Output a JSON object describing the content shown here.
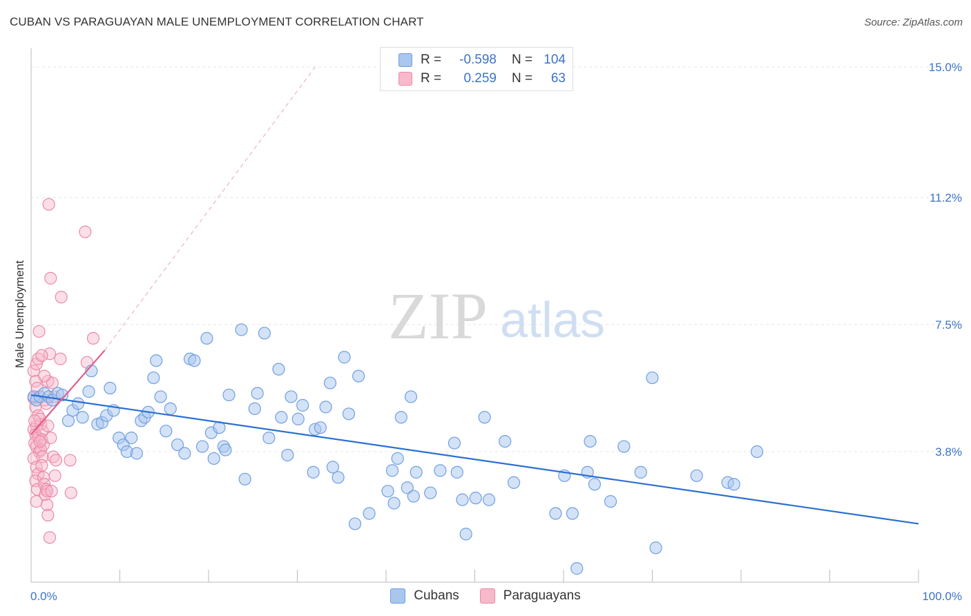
{
  "title": "CUBAN VS PARAGUAYAN MALE UNEMPLOYMENT CORRELATION CHART",
  "source": "Source: ZipAtlas.com",
  "watermark": {
    "zip": "ZIP",
    "atlas": "atlas"
  },
  "legend": {
    "rows": [
      {
        "r_label": "R =",
        "r_value": "-0.598",
        "n_label": "N =",
        "n_value": "104"
      },
      {
        "r_label": "R =",
        "r_value": "0.259",
        "n_label": "N =",
        "n_value": "63"
      }
    ]
  },
  "colors": {
    "cubans_fill": "#a9c6ef",
    "cubans_stroke": "#6e9fdf",
    "cubans_line": "#2a6fd1",
    "paraguayans_fill": "#f7b9cb",
    "paraguayans_stroke": "#ec89a7",
    "paraguayans_line": "#e0608b",
    "tick_text": "#3b73c9"
  },
  "chart_data": {
    "type": "scatter",
    "title": "CUBAN VS PARAGUAYAN MALE UNEMPLOYMENT CORRELATION CHART",
    "xlabel": "",
    "ylabel": "Male Unemployment",
    "xlim": [
      0,
      100
    ],
    "ylim": [
      0,
      15.5
    ],
    "x_tick_labels": [
      "0.0%",
      "100.0%"
    ],
    "y_ticks": [
      3.8,
      7.5,
      11.2,
      15.0
    ],
    "y_tick_labels": [
      "3.8%",
      "7.5%",
      "11.2%",
      "15.0%"
    ],
    "grid": true,
    "legend_position": "top-center",
    "series": [
      {
        "name": "Cubans",
        "trend": {
          "x": [
            0,
            100
          ],
          "y": [
            5.45,
            1.7
          ]
        },
        "points": [
          [
            0.3,
            5.4
          ],
          [
            0.6,
            5.3
          ],
          [
            1.0,
            5.4
          ],
          [
            1.5,
            5.5
          ],
          [
            2.0,
            5.4
          ],
          [
            2.4,
            5.3
          ],
          [
            3.0,
            5.5
          ],
          [
            3.5,
            5.45
          ],
          [
            4.2,
            4.7
          ],
          [
            4.7,
            5.0
          ],
          [
            5.3,
            5.2
          ],
          [
            5.8,
            4.8
          ],
          [
            6.5,
            5.55
          ],
          [
            6.8,
            6.15
          ],
          [
            7.5,
            4.6
          ],
          [
            8.0,
            4.65
          ],
          [
            8.5,
            4.85
          ],
          [
            8.9,
            5.65
          ],
          [
            9.3,
            5.0
          ],
          [
            9.9,
            4.2
          ],
          [
            10.4,
            4.0
          ],
          [
            10.8,
            3.8
          ],
          [
            11.3,
            4.2
          ],
          [
            11.9,
            3.75
          ],
          [
            12.4,
            4.7
          ],
          [
            12.8,
            4.8
          ],
          [
            13.2,
            4.95
          ],
          [
            13.8,
            5.95
          ],
          [
            14.1,
            6.45
          ],
          [
            14.6,
            5.4
          ],
          [
            15.2,
            4.4
          ],
          [
            15.7,
            5.05
          ],
          [
            16.5,
            4.0
          ],
          [
            17.3,
            3.75
          ],
          [
            17.9,
            6.5
          ],
          [
            18.4,
            6.45
          ],
          [
            19.3,
            3.95
          ],
          [
            19.8,
            7.1
          ],
          [
            20.3,
            4.35
          ],
          [
            20.6,
            3.6
          ],
          [
            21.2,
            4.5
          ],
          [
            21.7,
            3.95
          ],
          [
            21.9,
            3.85
          ],
          [
            22.3,
            5.45
          ],
          [
            23.7,
            7.35
          ],
          [
            24.1,
            3.0
          ],
          [
            25.2,
            5.05
          ],
          [
            25.5,
            5.5
          ],
          [
            26.3,
            7.25
          ],
          [
            26.8,
            4.2
          ],
          [
            27.9,
            6.2
          ],
          [
            28.2,
            4.8
          ],
          [
            28.9,
            3.7
          ],
          [
            29.3,
            5.4
          ],
          [
            30.1,
            4.75
          ],
          [
            30.6,
            5.15
          ],
          [
            31.8,
            3.2
          ],
          [
            32.0,
            4.45
          ],
          [
            32.6,
            4.5
          ],
          [
            33.2,
            5.1
          ],
          [
            33.7,
            5.8
          ],
          [
            34.0,
            3.35
          ],
          [
            34.6,
            3.05
          ],
          [
            35.3,
            6.55
          ],
          [
            35.8,
            4.9
          ],
          [
            36.5,
            1.7
          ],
          [
            36.9,
            6.0
          ],
          [
            38.1,
            2.0
          ],
          [
            40.2,
            2.65
          ],
          [
            40.7,
            3.25
          ],
          [
            40.9,
            2.3
          ],
          [
            41.3,
            3.6
          ],
          [
            41.7,
            4.8
          ],
          [
            42.4,
            2.75
          ],
          [
            42.8,
            5.4
          ],
          [
            43.1,
            2.5
          ],
          [
            43.4,
            3.2
          ],
          [
            45.0,
            2.6
          ],
          [
            46.1,
            3.25
          ],
          [
            47.7,
            4.05
          ],
          [
            48.0,
            3.2
          ],
          [
            48.6,
            2.4
          ],
          [
            49.0,
            1.4
          ],
          [
            50.1,
            2.45
          ],
          [
            51.1,
            4.8
          ],
          [
            51.6,
            2.4
          ],
          [
            53.4,
            4.1
          ],
          [
            54.4,
            2.9
          ],
          [
            59.1,
            2.0
          ],
          [
            60.1,
            3.1
          ],
          [
            61.0,
            2.0
          ],
          [
            61.5,
            0.4
          ],
          [
            62.7,
            3.2
          ],
          [
            63.0,
            4.1
          ],
          [
            63.5,
            2.85
          ],
          [
            65.3,
            2.35
          ],
          [
            66.8,
            3.95
          ],
          [
            68.7,
            3.2
          ],
          [
            70.0,
            5.95
          ],
          [
            70.4,
            1.0
          ],
          [
            75.0,
            3.1
          ],
          [
            78.5,
            2.9
          ],
          [
            79.2,
            2.85
          ],
          [
            81.8,
            3.8
          ]
        ]
      },
      {
        "name": "Paraguayans",
        "trend": {
          "x": [
            0,
            8.3
          ],
          "y": [
            4.3,
            6.75
          ],
          "ext_x": [
            8.3,
            32.0
          ],
          "ext_y": [
            6.75,
            15.0
          ]
        },
        "points": [
          [
            0.3,
            6.15
          ],
          [
            0.6,
            6.35
          ],
          [
            0.8,
            6.5
          ],
          [
            0.5,
            5.85
          ],
          [
            0.7,
            5.65
          ],
          [
            0.9,
            7.3
          ],
          [
            0.3,
            5.35
          ],
          [
            0.5,
            5.1
          ],
          [
            0.8,
            4.85
          ],
          [
            0.6,
            4.55
          ],
          [
            0.3,
            4.45
          ],
          [
            0.5,
            4.3
          ],
          [
            0.8,
            4.2
          ],
          [
            0.4,
            4.05
          ],
          [
            0.6,
            3.95
          ],
          [
            0.9,
            3.8
          ],
          [
            0.3,
            3.6
          ],
          [
            0.6,
            3.35
          ],
          [
            0.8,
            3.15
          ],
          [
            0.5,
            2.95
          ],
          [
            0.7,
            2.7
          ],
          [
            0.6,
            2.35
          ],
          [
            1.1,
            4.6
          ],
          [
            1.3,
            4.4
          ],
          [
            1.2,
            4.15
          ],
          [
            1.4,
            4.0
          ],
          [
            1.1,
            3.85
          ],
          [
            1.3,
            3.65
          ],
          [
            1.2,
            3.4
          ],
          [
            1.4,
            3.05
          ],
          [
            1.5,
            2.85
          ],
          [
            1.7,
            2.7
          ],
          [
            1.6,
            2.55
          ],
          [
            1.8,
            2.25
          ],
          [
            1.9,
            1.95
          ],
          [
            2.1,
            1.3
          ],
          [
            1.8,
            2.65
          ],
          [
            2.3,
            2.65
          ],
          [
            1.5,
            5.3
          ],
          [
            1.7,
            5.2
          ],
          [
            1.9,
            5.85
          ],
          [
            2.1,
            6.65
          ],
          [
            2.4,
            5.8
          ],
          [
            2.2,
            4.2
          ],
          [
            2.5,
            3.65
          ],
          [
            2.7,
            3.1
          ],
          [
            2.8,
            3.55
          ],
          [
            1.9,
            4.55
          ],
          [
            1.5,
            6.0
          ],
          [
            1.2,
            6.6
          ],
          [
            1.0,
            4.75
          ],
          [
            3.3,
            6.5
          ],
          [
            3.4,
            8.3
          ],
          [
            2.2,
            8.85
          ],
          [
            2.0,
            11.0
          ],
          [
            6.1,
            10.2
          ],
          [
            6.3,
            6.4
          ],
          [
            7.0,
            7.1
          ],
          [
            4.5,
            2.6
          ],
          [
            4.4,
            3.55
          ],
          [
            1.0,
            4.1
          ],
          [
            0.4,
            4.7
          ],
          [
            2.6,
            5.4
          ]
        ]
      }
    ]
  }
}
